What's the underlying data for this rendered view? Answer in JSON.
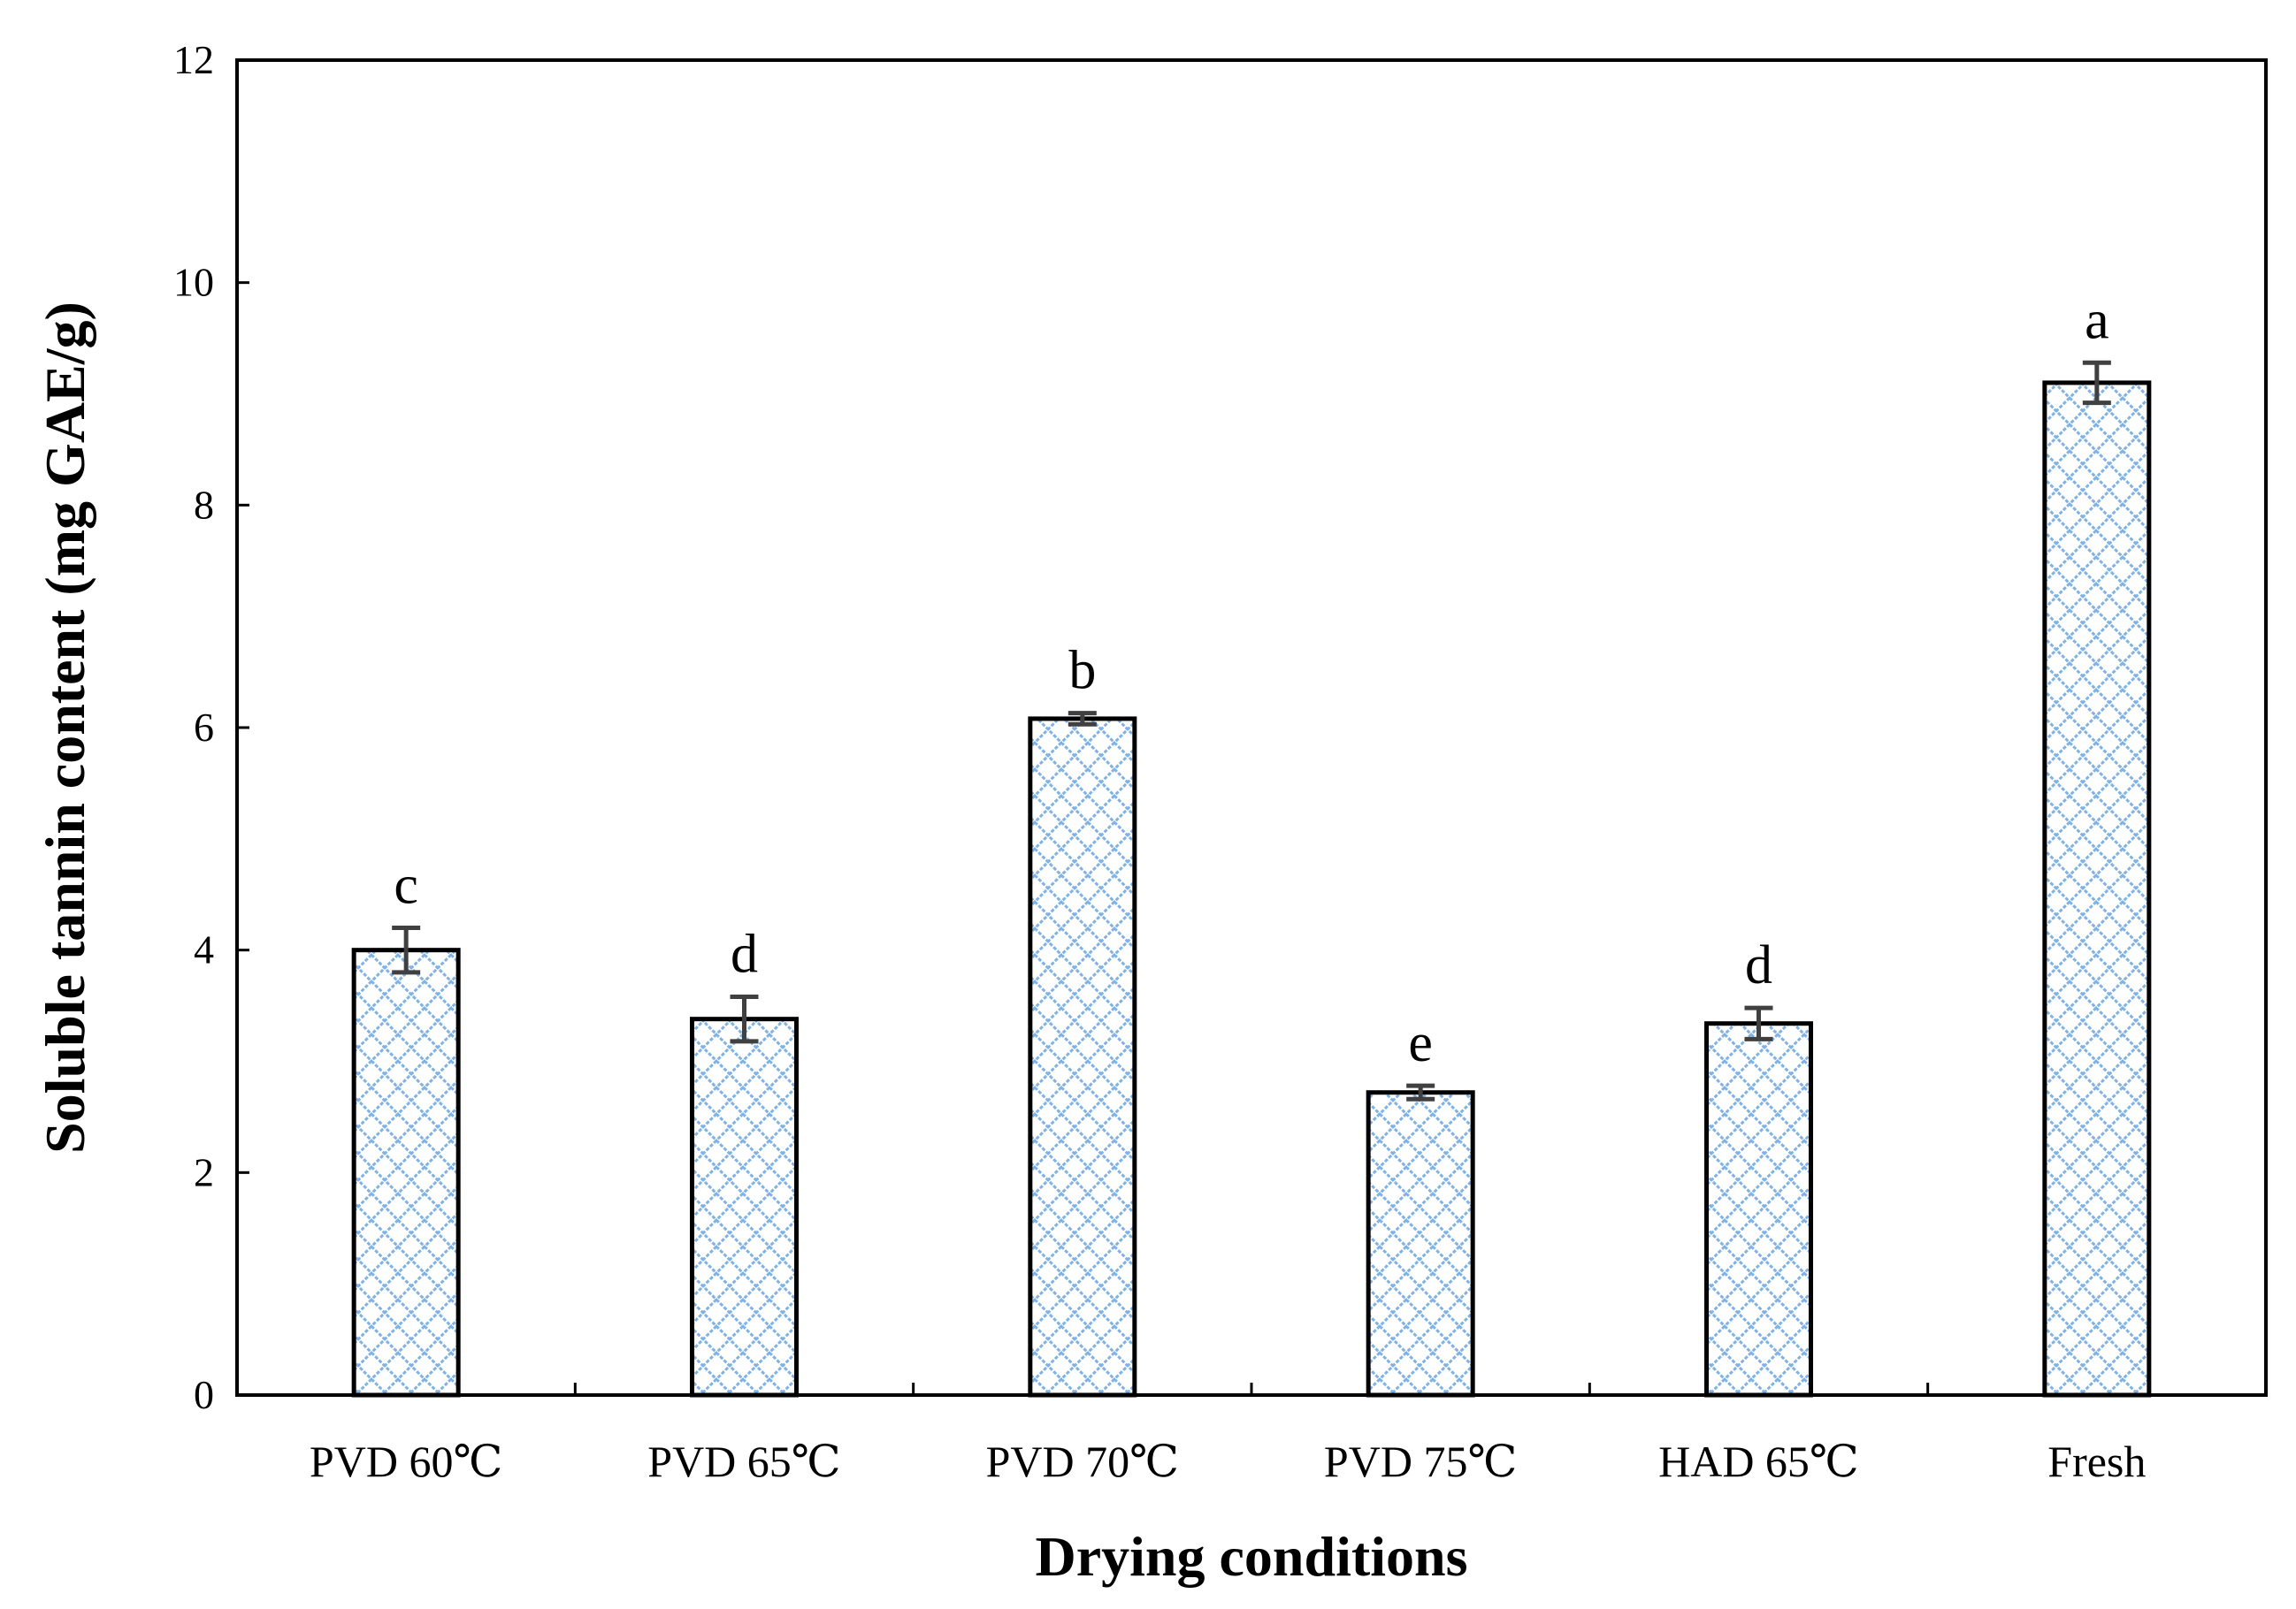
{
  "chart_data": {
    "type": "bar",
    "title": "",
    "xlabel": "Drying conditions",
    "ylabel": "Soluble tannin content (mg GAE/g)",
    "ylim": [
      0,
      12
    ],
    "yticks": [
      0,
      2,
      4,
      6,
      8,
      10,
      12
    ],
    "yticks_text": [
      "0",
      "2",
      "4",
      "6",
      "8",
      "10",
      "12"
    ],
    "grid": false,
    "legend": "none",
    "categories": [
      "PVD 60℃",
      "PVD 65℃",
      "PVD 70℃",
      "PVD 75℃",
      "HAD 65℃",
      "Fresh"
    ],
    "values": [
      4.0,
      3.38,
      6.08,
      2.72,
      3.34,
      9.1
    ],
    "errors": [
      0.2,
      0.2,
      0.05,
      0.06,
      0.14,
      0.18
    ],
    "significance_letters": [
      "c",
      "d",
      "b",
      "e",
      "d",
      "a"
    ],
    "colors": {
      "bar_fill": "#ffffff",
      "bar_pattern": "#7fb2e5",
      "bar_edge": "#000000",
      "error_bar": "#404040",
      "axis": "#000000"
    }
  }
}
